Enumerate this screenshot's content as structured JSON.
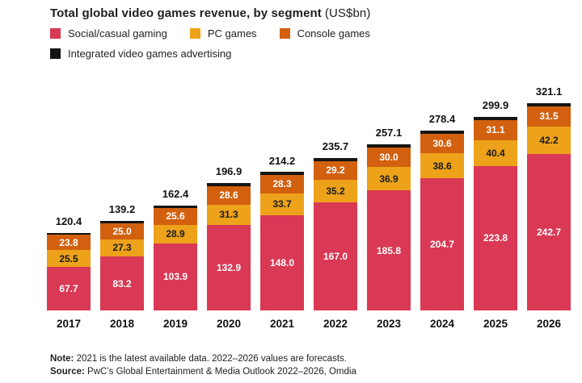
{
  "chart_data": {
    "type": "bar",
    "stacked": true,
    "title": "Total global video games revenue, by segment",
    "title_unit": "(US$bn)",
    "categories": [
      "2017",
      "2018",
      "2019",
      "2020",
      "2021",
      "2022",
      "2023",
      "2024",
      "2025",
      "2026"
    ],
    "series": [
      {
        "name": "Social/casual gaming",
        "color": "#d93954",
        "label_color": "#ffffff",
        "show_labels": true,
        "values": [
          67.7,
          83.2,
          103.9,
          132.9,
          148.0,
          167.0,
          185.8,
          204.7,
          223.8,
          242.7
        ]
      },
      {
        "name": "PC games",
        "color": "#eda21a",
        "label_color": "#1a1a1a",
        "show_labels": true,
        "values": [
          25.5,
          27.3,
          28.9,
          31.3,
          33.7,
          35.2,
          36.9,
          38.6,
          40.4,
          42.2
        ]
      },
      {
        "name": "Console games",
        "color": "#d2600e",
        "label_color": "#ffffff",
        "show_labels": true,
        "values": [
          23.8,
          25.0,
          25.6,
          28.6,
          28.3,
          29.2,
          30.0,
          30.6,
          31.1,
          31.5
        ]
      },
      {
        "name": "Integrated video games advertising",
        "color": "#141414",
        "label_color": "#ffffff",
        "show_labels": false,
        "values": [
          3.4,
          3.7,
          4.0,
          4.1,
          4.2,
          4.3,
          4.4,
          4.5,
          4.6,
          4.7
        ]
      }
    ],
    "totals": [
      120.4,
      139.2,
      162.4,
      196.9,
      214.2,
      235.7,
      257.1,
      278.4,
      299.9,
      321.1
    ],
    "ylim": [
      0,
      321.1
    ],
    "grid": false,
    "legend_position": "top-left",
    "value_label_format": "one-decimal"
  },
  "footer": {
    "note_prefix": "Note:",
    "note_text": "2021 is the latest available data. 2022–2026 values are forecasts.",
    "source_prefix": "Source:",
    "source_text": "PwC’s Global Entertainment & Media Outlook 2022–2026, Omdia"
  }
}
